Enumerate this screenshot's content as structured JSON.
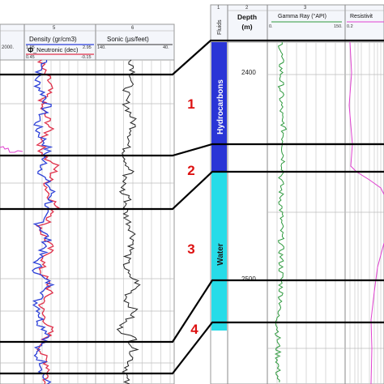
{
  "left_panel": {
    "header": {
      "col_numbers": [
        "5",
        "6"
      ],
      "left_stub_value": "2000.",
      "density": {
        "label": "Density (gr/cm3)",
        "min": "1.95",
        "max": "2.95"
      },
      "neutronic": {
        "label": "_Neutronic (dec)",
        "min": "0.45",
        "max": "-0.15"
      },
      "sonic": {
        "label": "Sonic (µs/feet)",
        "min": "140.",
        "max": "40."
      }
    }
  },
  "right_panel": {
    "header": {
      "col_numbers": [
        "1",
        "2",
        "3"
      ],
      "fluids": "Fluids",
      "depth": "Depth",
      "depth_unit": "(m)",
      "gamma": {
        "label": "Gamma Ray (°API)",
        "min": "0.",
        "max": "150."
      },
      "resistivity": {
        "label": "Resistivit",
        "min": "0.2"
      }
    },
    "depth_labels": [
      "2400",
      "2500"
    ],
    "zones": [
      {
        "label": "Hydrocarbons",
        "color": "#2a35d6"
      },
      {
        "label": "Water",
        "color": "#27dce8"
      }
    ]
  },
  "zone_numbers": [
    "1",
    "2",
    "3",
    "4"
  ],
  "colors": {
    "density": "#2b3fd8",
    "neutronic": "#e0304a",
    "sonic": "#222222",
    "gamma": "#2e9a3e",
    "resistivity": "#e040d0",
    "zone_number": "#dd1111",
    "correlation_line": "#000000"
  }
}
